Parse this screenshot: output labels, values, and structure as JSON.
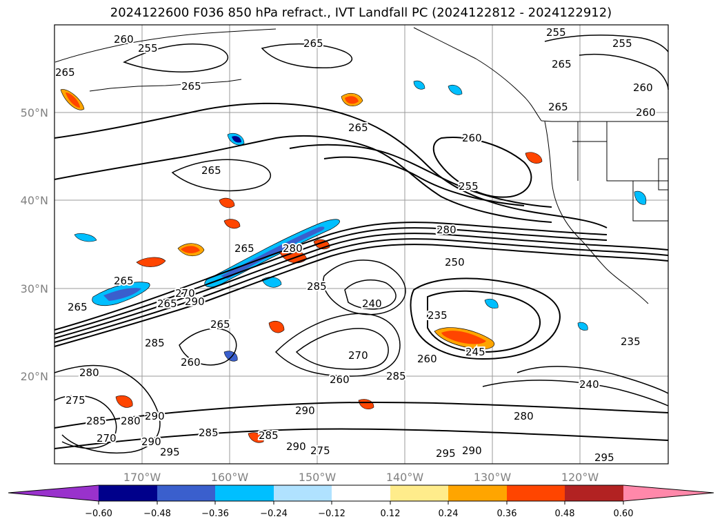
{
  "title": "2024122600 F036 850 hPa refract., IVT Landfall PC (2024122812 - 2024122912)",
  "lat_labels": [
    "50°N",
    "40°N",
    "30°N",
    "20°N"
  ],
  "lon_labels": [
    "170°W",
    "160°W",
    "150°W",
    "140°W",
    "130°W",
    "120°W"
  ],
  "colorbar": {
    "ticks": [
      "−0.60",
      "−0.48",
      "−0.36",
      "−0.24",
      "−0.12",
      "0.12",
      "0.24",
      "0.36",
      "0.48",
      "0.60"
    ],
    "colors": [
      "#9932cc",
      "#00008b",
      "#3a5fcd",
      "#00bfff",
      "#b0e2ff",
      "#ffffff",
      "#ffec8b",
      "#ffa500",
      "#ff4500",
      "#b22222",
      "#ff88aa",
      "#ff88aa"
    ]
  },
  "contour_labels": [
    "260",
    "255",
    "265",
    "265",
    "265",
    "255",
    "255",
    "265",
    "260",
    "260",
    "265",
    "265",
    "265",
    "265",
    "260",
    "255",
    "265",
    "280",
    "250",
    "280",
    "285",
    "265",
    "270",
    "290",
    "265",
    "265",
    "285",
    "260",
    "240",
    "235",
    "260",
    "245",
    "285",
    "260",
    "270",
    "280",
    "285",
    "290",
    "275",
    "280",
    "290",
    "270",
    "290",
    "285",
    "295",
    "285",
    "290",
    "275",
    "295",
    "290",
    "280",
    "240",
    "235",
    "295"
  ]
}
